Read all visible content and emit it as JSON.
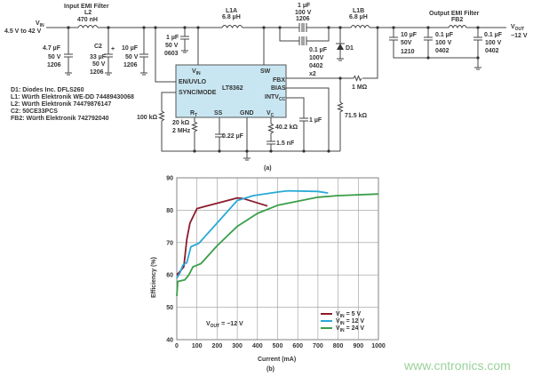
{
  "schematic": {
    "caption": "(a)",
    "vin_label": "V",
    "vin_sub": "IN",
    "vin_range": "4.5 V to 42 V",
    "input_filter": {
      "title": "Input EMI Filter",
      "ref": "L2",
      "value": "470 nH"
    },
    "input_caps": [
      {
        "lines": [
          "4.7 µF",
          "50 V",
          "1206"
        ]
      },
      {
        "lines": [
          "C2",
          "33 µF",
          "50 V",
          "1206"
        ],
        "polarity": "+"
      },
      {
        "lines": [
          "10 µF",
          "50 V",
          "1206"
        ]
      },
      {
        "lines": [
          "1 µF",
          "50 V",
          "0603"
        ]
      }
    ],
    "l1a": {
      "ref": "L1A",
      "value": "6.8 µH"
    },
    "l1b": {
      "ref": "L1B",
      "value": "6.8 µH"
    },
    "coupling_cap": {
      "lines": [
        "1 µF",
        "100 V",
        "1206"
      ]
    },
    "coupling_cap2": {
      "lines": [
        "0.1 µF",
        "100V",
        "0402",
        "x2"
      ]
    },
    "diode": "D1",
    "ic": {
      "name": "LT8362",
      "pins": {
        "vin": "V",
        "vin_sub": "IN",
        "sw": "SW",
        "en": "EN/UVLO",
        "sync": "SYNC/MODE",
        "fbx": "FBX",
        "bias": "BIAS",
        "intv": "INTV",
        "intv_sub": "CC",
        "rt": "R",
        "rt_sub": "T",
        "ss": "SS",
        "gnd": "GND",
        "vc": "V",
        "vc_sub": "C"
      },
      "color": "#c8e6f2"
    },
    "output_caps": [
      {
        "lines": [
          "10 µF",
          "50V",
          "1210"
        ]
      },
      {
        "lines": [
          "0.1 µF",
          "100 V",
          "0402"
        ]
      },
      {
        "lines": [
          "0.1 µF",
          "100 V",
          "0402"
        ]
      }
    ],
    "output_filter": {
      "title": "Output EMI Filter",
      "ref": "FB2"
    },
    "vout_label": "V",
    "vout_sub": "OUT",
    "vout_value": "−12 V",
    "r_fbx": "1 MΩ",
    "r_fb_low": "71.5 kΩ",
    "r_sync": "100 kΩ",
    "r_t": [
      "20 kΩ",
      "2 MHz"
    ],
    "c_ss": "0.22 µF",
    "r_c": "40.2 kΩ",
    "c_c": "1.5 nF",
    "c_intv": "1 µF",
    "bom": [
      "D1: Diodes Inc. DFLS260",
      "L1: Würth Elektronik WE-DD 74489430068",
      "L2: Würth Elektronik 74479876147",
      "C2: 50CE33PCS",
      "FB2: Würth Elektronik 742792040"
    ]
  },
  "chart_data": {
    "type": "line",
    "caption": "(b)",
    "xlabel": "Current (mA)",
    "ylabel": "Efficiency (%)",
    "xlim": [
      0,
      1000
    ],
    "ylim": [
      40,
      90
    ],
    "xticks": [
      0,
      100,
      200,
      300,
      400,
      500,
      600,
      700,
      800,
      900,
      1000
    ],
    "yticks": [
      40,
      50,
      60,
      70,
      80,
      90
    ],
    "grid": true,
    "legend": "bottom-right",
    "annotation": {
      "text": "V",
      "sub": "OUT",
      "rest": " = −12 V"
    },
    "series": [
      {
        "name": "V",
        "sub": "IN",
        "rest": " = 5 V",
        "color": "#8b1a2b",
        "points": [
          [
            0,
            60
          ],
          [
            15,
            61
          ],
          [
            35,
            62.5
          ],
          [
            50,
            71
          ],
          [
            65,
            76
          ],
          [
            100,
            80.5
          ],
          [
            130,
            81
          ],
          [
            300,
            83.8
          ],
          [
            330,
            83.6
          ],
          [
            450,
            81.3
          ]
        ]
      },
      {
        "name": "V",
        "sub": "IN",
        "rest": " = 12 V",
        "color": "#29a9d6",
        "points": [
          [
            0,
            59
          ],
          [
            15,
            60.5
          ],
          [
            30,
            63
          ],
          [
            50,
            63.8
          ],
          [
            70,
            68.7
          ],
          [
            110,
            69.8
          ],
          [
            300,
            83
          ],
          [
            380,
            84.5
          ],
          [
            500,
            85.6
          ],
          [
            550,
            86
          ],
          [
            700,
            85.8
          ],
          [
            750,
            85.3
          ]
        ]
      },
      {
        "name": "V",
        "sub": "IN",
        "rest": " = 24 V",
        "color": "#3a9e4a",
        "points": [
          [
            0,
            53.5
          ],
          [
            5,
            58
          ],
          [
            40,
            58.5
          ],
          [
            60,
            60
          ],
          [
            80,
            62.5
          ],
          [
            120,
            63.5
          ],
          [
            200,
            69
          ],
          [
            300,
            75
          ],
          [
            400,
            79
          ],
          [
            500,
            81.5
          ],
          [
            700,
            84
          ],
          [
            800,
            84.5
          ],
          [
            1000,
            85
          ]
        ]
      }
    ]
  },
  "watermark": "www.cntronics.com"
}
